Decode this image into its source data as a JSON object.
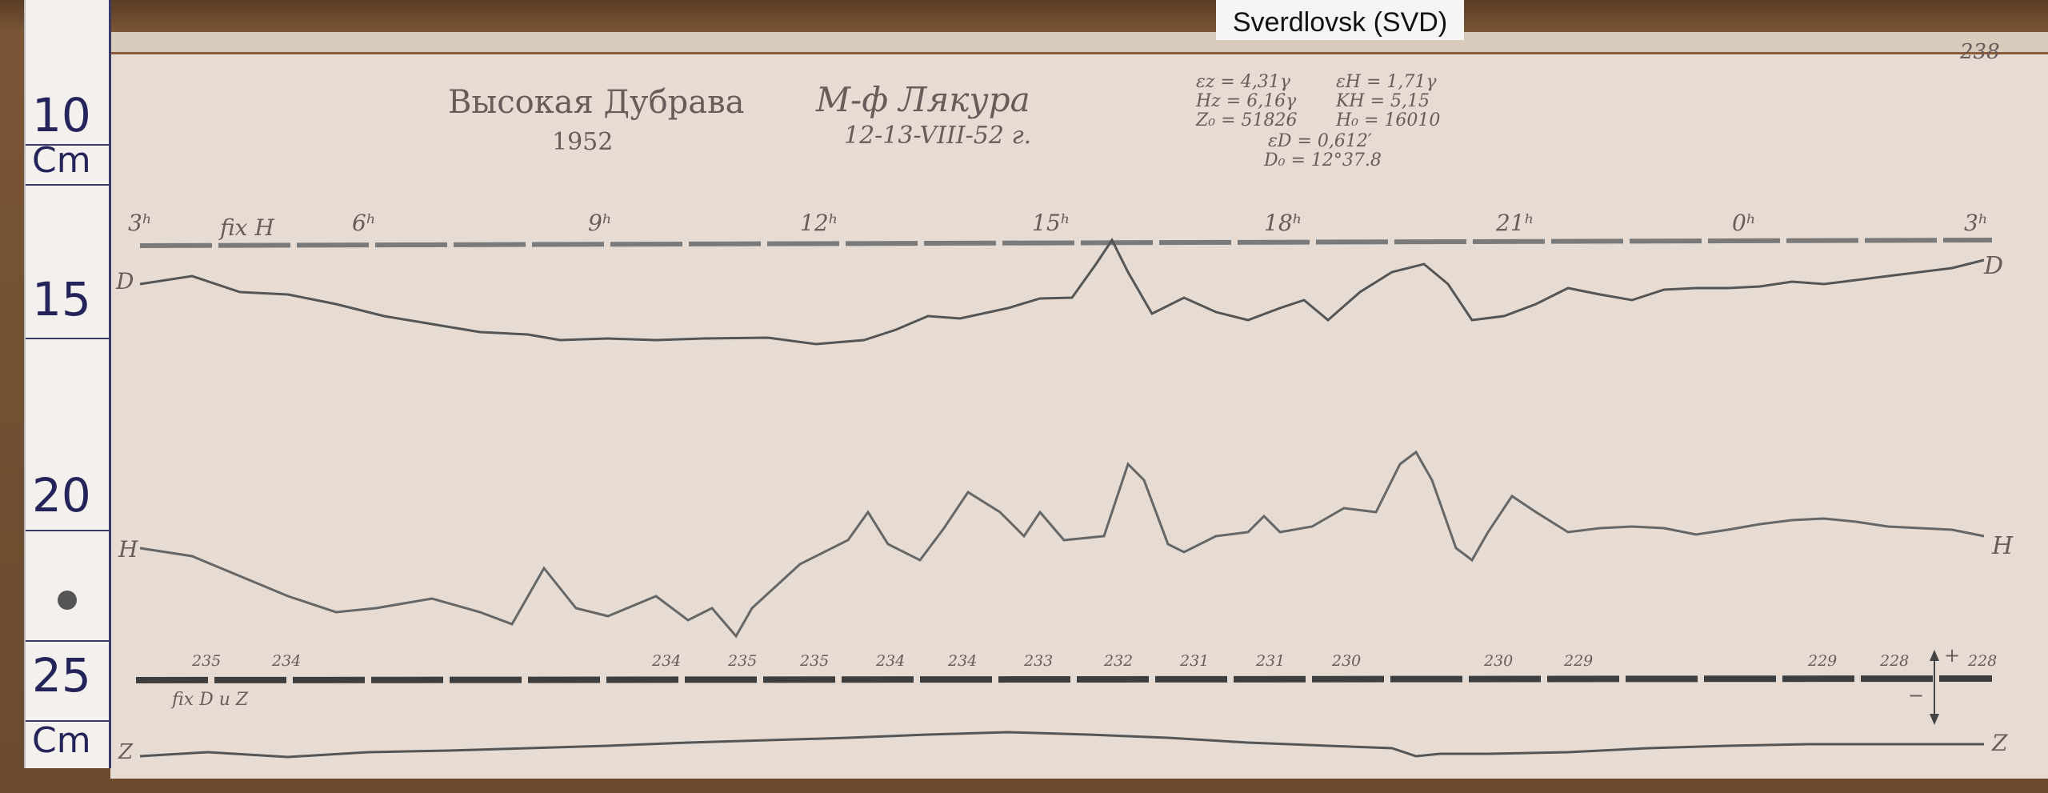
{
  "label_tag": "Sverdlovsk (SVD)",
  "page_number": "238",
  "title": {
    "station": "Высокая Дубрава",
    "year": "1952",
    "instrument": "М-ф Лякура",
    "date": "12-13-VIII-52 г."
  },
  "constants": [
    "εz = 4,31γ",
    "Hz = 6,16γ",
    "Z₀ = 51826",
    "εH = 1,71γ",
    "KH = 5,15",
    "H₀ = 16010",
    "εD = 0,612′",
    "D₀ = 12°37.8"
  ],
  "ruler": {
    "labels": [
      "10",
      "Cm",
      "15",
      "20",
      "25",
      "Cm"
    ]
  },
  "time_labels": [
    "3ʰ",
    "fix H",
    "6ʰ",
    "9ʰ",
    "12ʰ",
    "15ʰ",
    "18ʰ",
    "21ʰ",
    "0ʰ",
    "3ʰ"
  ],
  "trace_labels": {
    "d_left": "D",
    "d_right": "D",
    "h_left": "H",
    "h_right": "H",
    "z_left": "Z",
    "z_right": "Z"
  },
  "temp_labels": [
    "235",
    "234",
    "234",
    "235",
    "235",
    "234",
    "234",
    "233",
    "232",
    "231",
    "231",
    "230",
    "230",
    "229",
    "229",
    "228",
    "228"
  ],
  "fix_dz": "fix D u Z",
  "arrow_plus": "+",
  "arrow_minus": "−",
  "ink_color": "#5a5a5a"
}
